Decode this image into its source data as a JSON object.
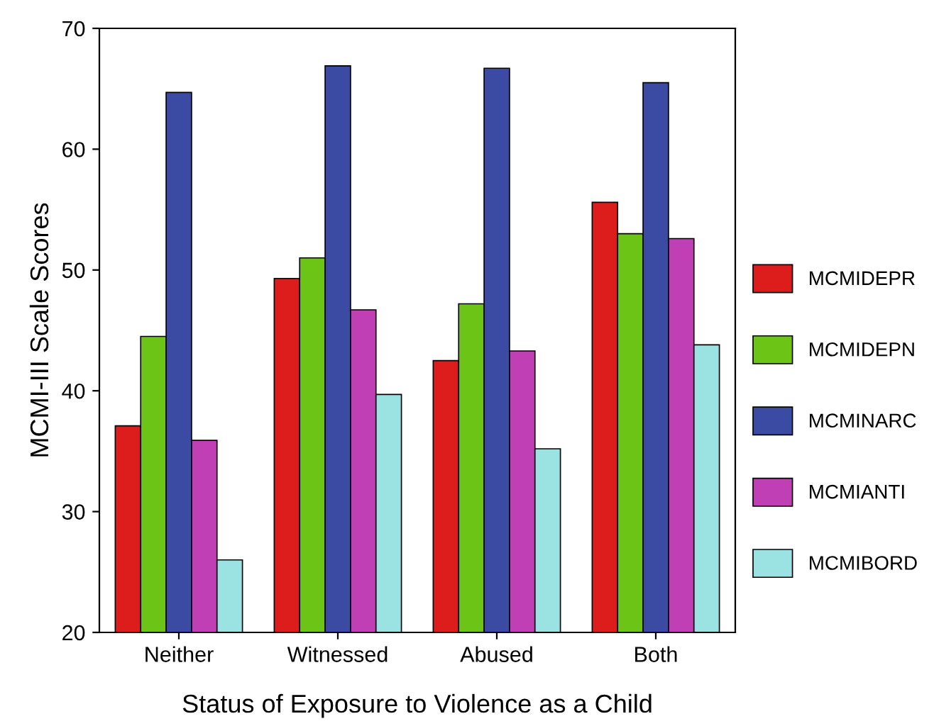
{
  "chart_data": {
    "type": "bar",
    "xlabel": "Status of Exposure to Violence as a Child",
    "ylabel": "MCMI-III Scale Scores",
    "categories": [
      "Neither",
      "Witnessed",
      "Abused",
      "Both"
    ],
    "series": [
      {
        "name": "MCMIDEPR",
        "color": "#dd1c1c",
        "values": [
          37.1,
          49.3,
          42.5,
          55.6
        ]
      },
      {
        "name": "MCMIDEPN",
        "color": "#6cc417",
        "values": [
          44.5,
          51.0,
          47.2,
          53.0
        ]
      },
      {
        "name": "MCMINARC",
        "color": "#3b4ba3",
        "values": [
          64.7,
          66.9,
          66.7,
          65.5
        ]
      },
      {
        "name": "MCMIANTI",
        "color": "#c13fb4",
        "values": [
          35.9,
          46.7,
          43.3,
          52.6
        ]
      },
      {
        "name": "MCMIBORD",
        "color": "#9be3e3",
        "values": [
          26.0,
          39.7,
          35.2,
          43.8
        ]
      }
    ],
    "ylim": [
      20,
      70
    ],
    "yticks": [
      20,
      30,
      40,
      50,
      60,
      70
    ],
    "legend": "right",
    "grid": false
  }
}
